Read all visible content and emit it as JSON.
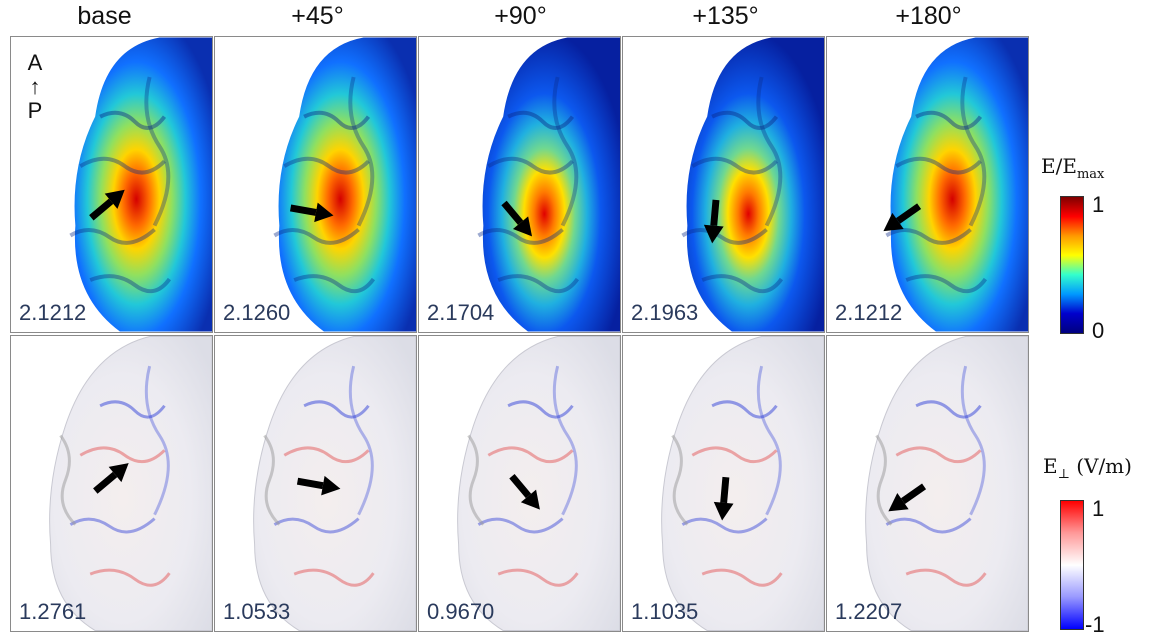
{
  "columns": [
    "base",
    "+45°",
    "+90°",
    "+135°",
    "+180°"
  ],
  "orientation": {
    "top": "A",
    "arrow": "↑",
    "bottom": "P"
  },
  "rows": [
    {
      "name": "E/Emax",
      "values": [
        "2.1212",
        "2.1260",
        "2.1704",
        "2.1963",
        "2.1212"
      ],
      "arrow_angles_deg": [
        -40,
        10,
        50,
        95,
        145
      ]
    },
    {
      "name": "E-perp",
      "values": [
        "1.2761",
        "1.0533",
        "0.9670",
        "1.1035",
        "1.2207"
      ],
      "arrow_angles_deg": [
        -40,
        10,
        50,
        95,
        145
      ]
    }
  ],
  "colorbars": {
    "top": {
      "label_main": "E/E",
      "label_sub": "max",
      "max": "1",
      "min": "0",
      "colors": [
        "#7f0000",
        "#ff0000",
        "#ff9900",
        "#ffff00",
        "#33ffcc",
        "#0099ff",
        "#0000cc",
        "#00007f"
      ]
    },
    "bottom": {
      "label_main": "E",
      "label_sub": "⊥",
      "label_unit": " (V/m)",
      "max": "1",
      "min": "-1",
      "colors": [
        "#ff0000",
        "#ff9999",
        "#ffffff",
        "#9999ff",
        "#0000ff"
      ]
    }
  }
}
